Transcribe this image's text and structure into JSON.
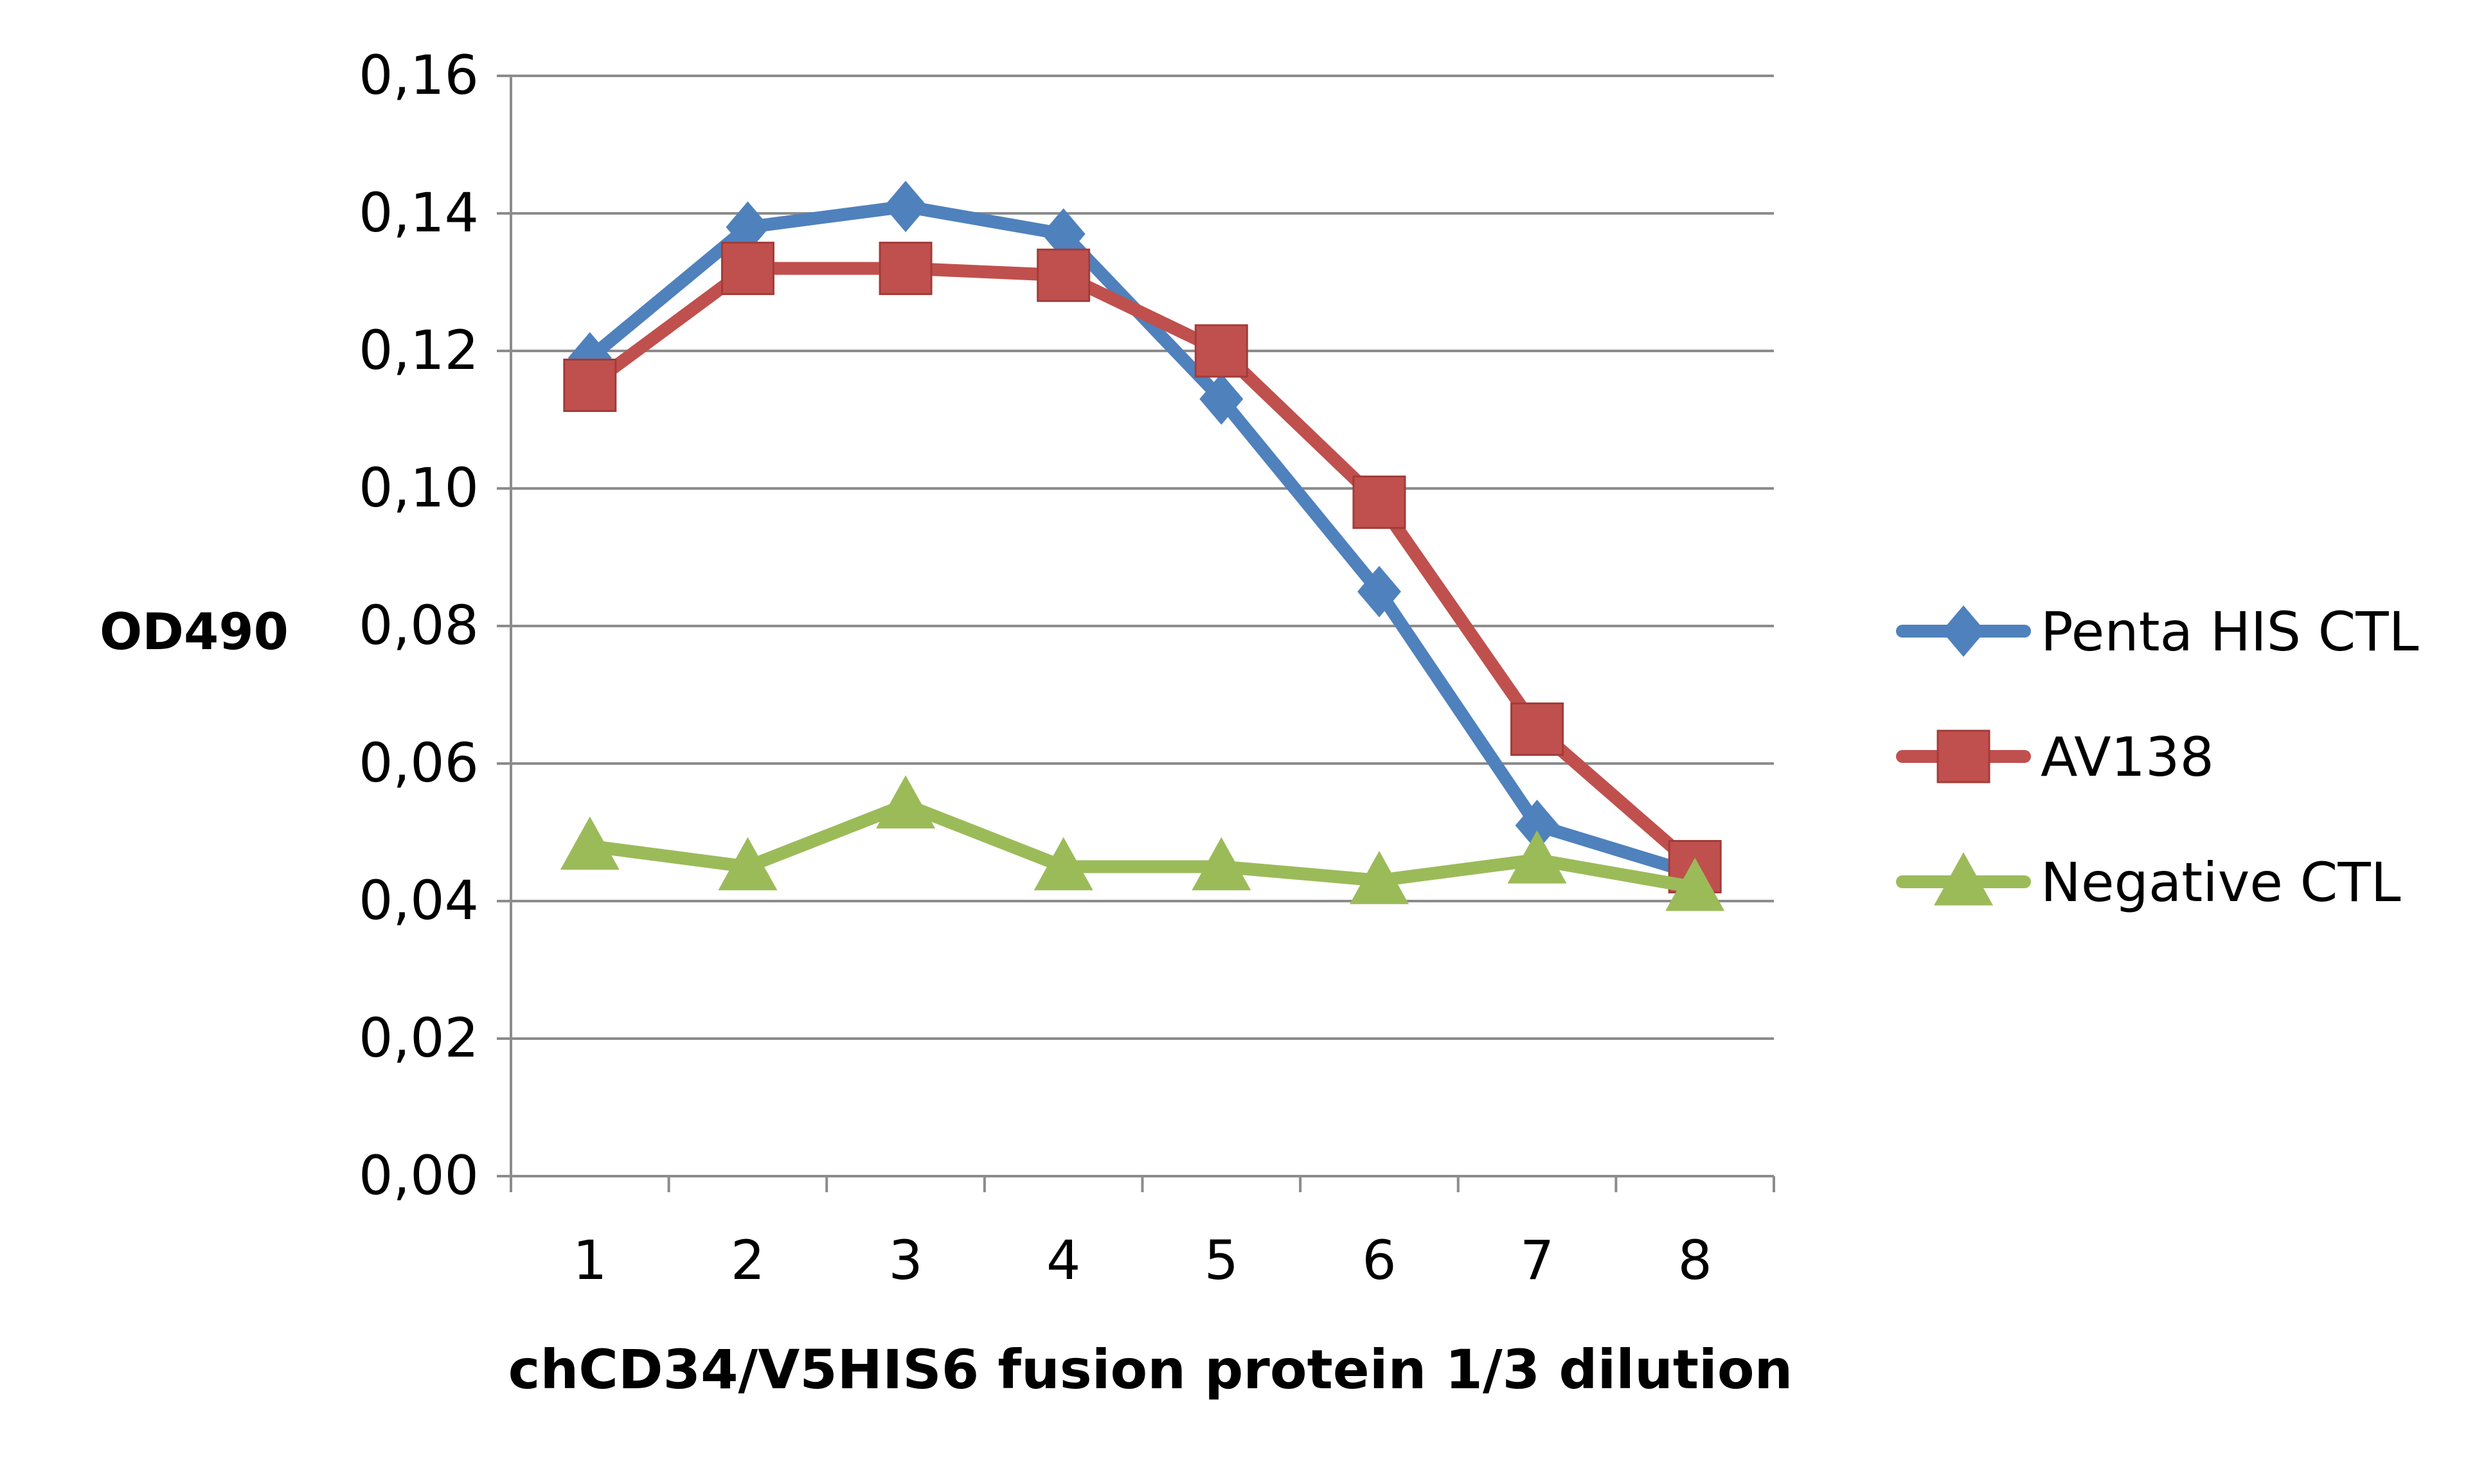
{
  "chart_data": {
    "type": "line",
    "title": "",
    "xlabel": "chCD34/V5HIS6 fusion protein 1/3 dilution",
    "ylabel": "OD490",
    "categories": [
      "1",
      "2",
      "3",
      "4",
      "5",
      "6",
      "7",
      "8"
    ],
    "y_ticks": [
      "0,00",
      "0,02",
      "0,04",
      "0,06",
      "0,08",
      "0,10",
      "0,12",
      "0,14",
      "0,16"
    ],
    "ylim": [
      0,
      0.16
    ],
    "grid": true,
    "legend_position": "right",
    "series": [
      {
        "name": "Penta HIS CTL",
        "values": [
          0.119,
          0.138,
          0.141,
          0.137,
          0.113,
          0.085,
          0.051,
          0.044
        ],
        "color": "#4f81bd",
        "marker": "diamond"
      },
      {
        "name": "AV138",
        "values": [
          0.115,
          0.132,
          0.132,
          0.131,
          0.12,
          0.098,
          0.065,
          0.045
        ],
        "color": "#c0504d",
        "marker": "square"
      },
      {
        "name": "Negative CTL",
        "values": [
          0.048,
          0.045,
          0.054,
          0.045,
          0.045,
          0.043,
          0.046,
          0.042
        ],
        "color": "#9bbb59",
        "marker": "triangle"
      }
    ]
  }
}
